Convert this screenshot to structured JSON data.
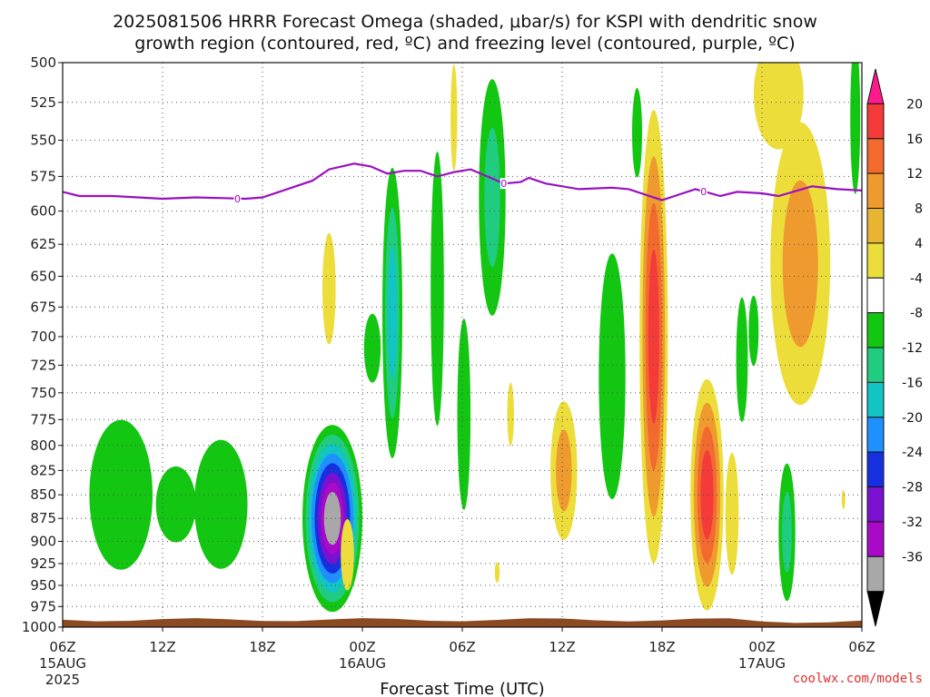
{
  "title": {
    "line1": "2025081506 HRRR Forecast Omega (shaded, μbar/s) for KSPI with dendritic snow",
    "line2": "growth region (contoured, red, ºC) and freezing level (contoured, purple, ºC)"
  },
  "credit": "coolwx.com/models",
  "colors": {
    "freezing_level": "#9a10c0",
    "ground": "#8b4a22",
    "grid": "#555555"
  },
  "chart_data": {
    "type": "heatmap",
    "title": "2025081506 HRRR Forecast Omega (shaded, μbar/s) for KSPI with dendritic snow growth region (contoured, red, ºC) and freezing level (contoured, purple, ºC)",
    "xlabel": "Forecast Time (UTC)",
    "ylabel": "",
    "x_ticks": [
      {
        "hour": 0,
        "label": "06Z",
        "sub1": "15AUG",
        "sub2": "2025"
      },
      {
        "hour": 6,
        "label": "12Z",
        "sub1": "",
        "sub2": ""
      },
      {
        "hour": 12,
        "label": "18Z",
        "sub1": "",
        "sub2": ""
      },
      {
        "hour": 18,
        "label": "00Z",
        "sub1": "16AUG",
        "sub2": ""
      },
      {
        "hour": 24,
        "label": "06Z",
        "sub1": "",
        "sub2": ""
      },
      {
        "hour": 30,
        "label": "12Z",
        "sub1": "",
        "sub2": ""
      },
      {
        "hour": 36,
        "label": "18Z",
        "sub1": "",
        "sub2": ""
      },
      {
        "hour": 42,
        "label": "00Z",
        "sub1": "17AUG",
        "sub2": ""
      },
      {
        "hour": 48,
        "label": "06Z",
        "sub1": "",
        "sub2": ""
      }
    ],
    "xlim": [
      0,
      48
    ],
    "y_ticks": [
      500,
      525,
      550,
      575,
      600,
      625,
      650,
      675,
      700,
      725,
      750,
      775,
      800,
      825,
      850,
      875,
      900,
      925,
      950,
      975,
      1000
    ],
    "ylim": [
      500,
      1000
    ],
    "y_scale": "log-pressure",
    "grid": true,
    "colorbar": {
      "labels": [
        "20",
        "16",
        "12",
        "8",
        "4",
        "-4",
        "-8",
        "-12",
        "-16",
        "-20",
        "-24",
        "-28",
        "-32",
        "-36"
      ],
      "levels": [
        {
          "color": "#ff1a8c"
        },
        {
          "color": "#f53a3a"
        },
        {
          "color": "#f26a2e"
        },
        {
          "color": "#ef9a2e"
        },
        {
          "color": "#e8b532"
        },
        {
          "color": "#ecdd3a"
        },
        {
          "color": "#ffffff"
        },
        {
          "color": "#12c612"
        },
        {
          "color": "#1fcc80"
        },
        {
          "color": "#12c4c4"
        },
        {
          "color": "#1e90ff"
        },
        {
          "color": "#1630e0"
        },
        {
          "color": "#7a10d0"
        },
        {
          "color": "#a80ac8"
        },
        {
          "color": "#a8a8a8"
        },
        {
          "color": "#000000"
        }
      ]
    },
    "freezing_level": {
      "label": "0",
      "points": [
        [
          0,
          586
        ],
        [
          1,
          589
        ],
        [
          3,
          589
        ],
        [
          6,
          591
        ],
        [
          8,
          590
        ],
        [
          11,
          591
        ],
        [
          12,
          590
        ],
        [
          13,
          586
        ],
        [
          15,
          578
        ],
        [
          16,
          570
        ],
        [
          17.5,
          566
        ],
        [
          18.5,
          568
        ],
        [
          19.5,
          573
        ],
        [
          20.5,
          571
        ],
        [
          21.5,
          571
        ],
        [
          22.5,
          575
        ],
        [
          23.5,
          572
        ],
        [
          24.5,
          570
        ],
        [
          25.5,
          575
        ],
        [
          26.5,
          580
        ],
        [
          27.5,
          579
        ],
        [
          28,
          576
        ],
        [
          29,
          580
        ],
        [
          31,
          584
        ],
        [
          33,
          583
        ],
        [
          34,
          584
        ],
        [
          36,
          592
        ],
        [
          37,
          588
        ],
        [
          38,
          584
        ],
        [
          39.5,
          589
        ],
        [
          40.5,
          586
        ],
        [
          42,
          587
        ],
        [
          43,
          589
        ],
        [
          45,
          582
        ],
        [
          46.5,
          584
        ],
        [
          48,
          585
        ]
      ],
      "label_hours": [
        10.5,
        26.5,
        38.5
      ]
    },
    "omega_features": [
      {
        "name": "green patch 10Z-12Z",
        "value": -6,
        "hour": 3.5,
        "pressure": 850,
        "half_hours": 1.9,
        "half_hpa": 78
      },
      {
        "name": "green patch 14Z-16Z",
        "value": -6,
        "hour": 9.5,
        "pressure": 860,
        "half_hours": 1.6,
        "half_hpa": 68
      },
      {
        "name": "green patch 13Z",
        "value": -5,
        "hour": 6.8,
        "pressure": 860,
        "half_hours": 1.2,
        "half_hpa": 40
      },
      {
        "name": "strong updraft 21Z-23Z",
        "value": -36,
        "hour": 16.2,
        "pressure": 875,
        "half_hours": 1.8,
        "half_hpa": 100
      },
      {
        "name": "yellow column 21Z upper",
        "value": 6,
        "hour": 16.0,
        "pressure": 660,
        "half_hours": 0.4,
        "half_hpa": 45
      },
      {
        "name": "yellow under updraft",
        "value": 8,
        "hour": 17.1,
        "pressure": 915,
        "half_hours": 0.4,
        "half_hpa": 40
      },
      {
        "name": "green cyan column 02Z",
        "value": -14,
        "hour": 19.8,
        "pressure": 680,
        "half_hours": 0.6,
        "half_hpa": 120
      },
      {
        "name": "green 01Z lower",
        "value": -6,
        "hour": 18.6,
        "pressure": 710,
        "half_hours": 0.5,
        "half_hpa": 30
      },
      {
        "name": "green 04Z",
        "value": -5,
        "hour": 22.5,
        "pressure": 660,
        "half_hours": 0.4,
        "half_hpa": 110
      },
      {
        "name": "cyan column 07Z-08Z",
        "value": -12,
        "hour": 25.8,
        "pressure": 590,
        "half_hours": 0.8,
        "half_hpa": 85
      },
      {
        "name": "green 05Z",
        "value": -5,
        "hour": 24.1,
        "pressure": 770,
        "half_hours": 0.4,
        "half_hpa": 90
      },
      {
        "name": "yellow 05Z top",
        "value": 5,
        "hour": 23.5,
        "pressure": 535,
        "half_hours": 0.2,
        "half_hpa": 35
      },
      {
        "name": "yellow 08Z",
        "value": 5,
        "hour": 26.9,
        "pressure": 770,
        "half_hours": 0.2,
        "half_hpa": 30
      },
      {
        "name": "yellow 08Z small",
        "value": 5,
        "hour": 26.1,
        "pressure": 935,
        "half_hours": 0.15,
        "half_hpa": 12
      },
      {
        "name": "green 15Z column",
        "value": -6,
        "hour": 33.0,
        "pressure": 735,
        "half_hours": 0.8,
        "half_hpa": 110
      },
      {
        "name": "orange 12Z",
        "value": 10,
        "hour": 30.1,
        "pressure": 825,
        "half_hours": 0.8,
        "half_hpa": 70
      },
      {
        "name": "strong downdraft 18Z",
        "value": 20,
        "hour": 35.5,
        "pressure": 700,
        "half_hours": 0.85,
        "half_hpa": 190
      },
      {
        "name": "strong downdraft 21Z",
        "value": 19,
        "hour": 38.7,
        "pressure": 850,
        "half_hours": 1.0,
        "half_hpa": 120
      },
      {
        "name": "yellow 22Z",
        "value": 8,
        "hour": 40.2,
        "pressure": 870,
        "half_hours": 0.4,
        "half_hpa": 65
      },
      {
        "name": "green 22Z mid",
        "value": -6,
        "hour": 40.8,
        "pressure": 720,
        "half_hours": 0.35,
        "half_hpa": 55
      },
      {
        "name": "green 23Z",
        "value": -5,
        "hour": 41.5,
        "pressure": 695,
        "half_hours": 0.3,
        "half_hpa": 30
      },
      {
        "name": "green 18Z top",
        "value": -5,
        "hour": 34.5,
        "pressure": 545,
        "half_hours": 0.3,
        "half_hpa": 30
      },
      {
        "name": "yellow 02Z-04Z upper",
        "value": 10,
        "hour": 44.3,
        "pressure": 640,
        "half_hours": 1.8,
        "half_hpa": 110
      },
      {
        "name": "yellow 01Z top",
        "value": 5,
        "hour": 43.0,
        "pressure": 520,
        "half_hours": 1.5,
        "half_hpa": 35
      },
      {
        "name": "green 02Z low",
        "value": -12,
        "hour": 43.5,
        "pressure": 890,
        "half_hours": 0.5,
        "half_hpa": 75
      },
      {
        "name": "green 06Z top",
        "value": -6,
        "hour": 47.6,
        "pressure": 535,
        "half_hours": 0.3,
        "half_hpa": 50
      },
      {
        "name": "yellow 05Z low",
        "value": 5,
        "hour": 46.9,
        "pressure": 855,
        "half_hours": 0.1,
        "half_hpa": 10
      }
    ]
  }
}
